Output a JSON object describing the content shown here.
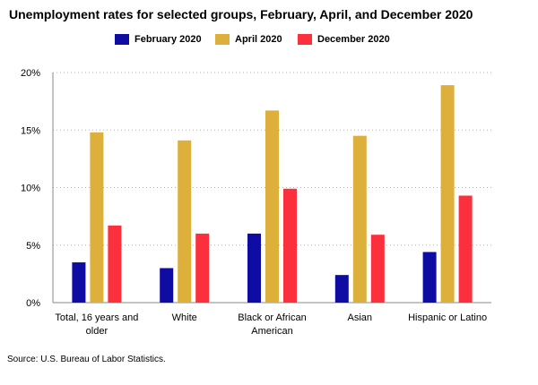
{
  "chart_data": {
    "type": "bar",
    "title": "Unemployment rates for selected groups, February, April, and December 2020",
    "xlabel": "",
    "ylabel": "",
    "ylim": [
      0,
      20
    ],
    "yticks": [
      "0%",
      "5%",
      "10%",
      "15%",
      "20%"
    ],
    "ytick_values": [
      0,
      5,
      10,
      15,
      20
    ],
    "grid": true,
    "legend_position": "top-center",
    "categories": [
      [
        "Total, 16 years and",
        "older"
      ],
      [
        "White"
      ],
      [
        "Black or African",
        "American"
      ],
      [
        "Asian"
      ],
      [
        "Hispanic or Latino"
      ]
    ],
    "series": [
      {
        "name": "February 2020",
        "color": "#0f0ca4",
        "values": [
          3.5,
          3.0,
          6.0,
          2.4,
          4.4
        ]
      },
      {
        "name": "April 2020",
        "color": "#ddb03c",
        "values": [
          14.8,
          14.1,
          16.7,
          14.5,
          18.9
        ]
      },
      {
        "name": "December 2020",
        "color": "#fc2f3c",
        "values": [
          6.7,
          6.0,
          9.9,
          5.9,
          9.3
        ]
      }
    ],
    "source": "Source: U.S. Bureau of Labor Statistics."
  }
}
